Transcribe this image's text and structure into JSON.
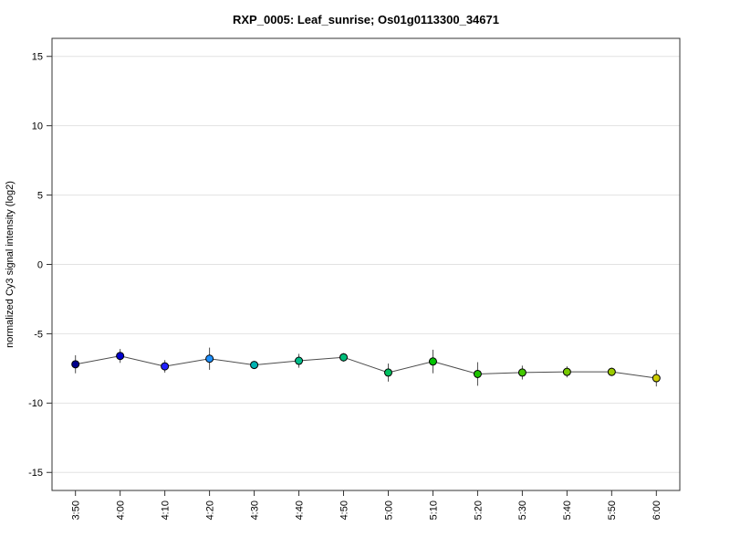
{
  "title": "RXP_0005: Leaf_sunrise; Os01g0113300_34671",
  "chart_data": {
    "type": "line",
    "title": "RXP_0005: Leaf_sunrise; Os01g0113300_34671",
    "xlabel": "",
    "ylabel": "normalized Cy3 signal intensity (log2)",
    "categories": [
      "3:50",
      "4:00",
      "4:10",
      "4:20",
      "4:30",
      "4:40",
      "4:50",
      "5:00",
      "5:10",
      "5:20",
      "5:30",
      "5:40",
      "5:50",
      "6:00"
    ],
    "values": [
      -7.2,
      -6.6,
      -7.35,
      -6.8,
      -7.25,
      -6.95,
      -6.7,
      -7.8,
      -7.0,
      -7.9,
      -7.8,
      -7.75,
      -7.75,
      -8.2
    ],
    "errors": [
      0.65,
      0.5,
      0.45,
      0.8,
      0.2,
      0.5,
      0.3,
      0.65,
      0.85,
      0.85,
      0.5,
      0.4,
      0.3,
      0.6
    ],
    "point_colors": [
      "#00008b",
      "#0000cd",
      "#2121ff",
      "#1e90ff",
      "#00b2b2",
      "#00bd8a",
      "#00bd7a",
      "#00c060",
      "#00c300",
      "#1ec300",
      "#44c800",
      "#76c800",
      "#9ccb00",
      "#cccc00"
    ],
    "ylim": [
      -16.3,
      16.3
    ],
    "yticks": [
      -15,
      -10,
      -5,
      0,
      5,
      10,
      15
    ],
    "grid": true,
    "legend": "none",
    "gridline_color": "#e2e2e2",
    "line_color": "#4d4d4d",
    "error_bar_color": "#4d4d4d",
    "point_outline_color": "#000000",
    "box_color": "#333333",
    "tick_color": "#333333",
    "background": "#ffffff"
  }
}
